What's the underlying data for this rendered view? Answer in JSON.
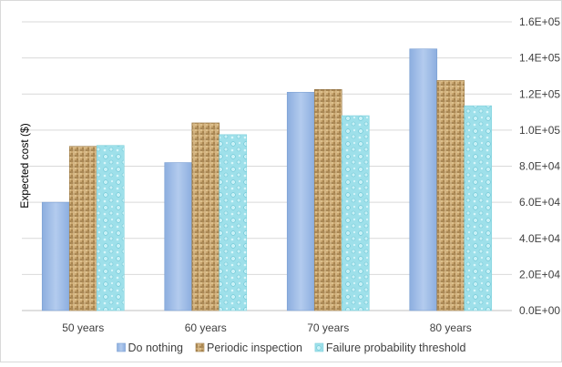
{
  "chart_data": {
    "type": "bar",
    "title": "",
    "xlabel": "",
    "ylabel": "Expected cost ($)",
    "categories": [
      "50 years",
      "60 years",
      "70 years",
      "80 years"
    ],
    "series": [
      {
        "name": "Do nothing",
        "values": [
          60000,
          82000,
          121000,
          145000
        ],
        "color": "#9db9e3",
        "pattern": "gradient-blue"
      },
      {
        "name": "Periodic inspection",
        "values": [
          91000,
          104000,
          122500,
          127500
        ],
        "color": "#c2a06a",
        "pattern": "woven-texture"
      },
      {
        "name": "Failure probability threshold",
        "values": [
          91500,
          97500,
          108000,
          113500
        ],
        "color": "#8fdbe6",
        "pattern": "water-droplets"
      }
    ],
    "y_axis": {
      "position": "right",
      "ylim": [
        0,
        160000
      ],
      "ticks": [
        0,
        20000,
        40000,
        60000,
        80000,
        100000,
        120000,
        140000,
        160000
      ],
      "tick_labels": [
        "0.0E+00",
        "2.0E+04",
        "4.0E+04",
        "6.0E+04",
        "8.0E+04",
        "1.0E+05",
        "1.2E+05",
        "1.4E+05",
        "1.6E+05"
      ]
    },
    "grid": true,
    "legend": "bottom"
  }
}
